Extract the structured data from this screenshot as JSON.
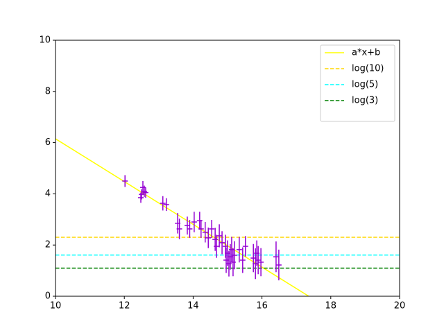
{
  "chart_data": {
    "type": "line",
    "xlim": [
      10,
      20
    ],
    "ylim": [
      0,
      10
    ],
    "xticks": [
      10,
      12,
      14,
      16,
      18,
      20
    ],
    "yticks": [
      0,
      2,
      4,
      6,
      8,
      10
    ],
    "legend": "upper right",
    "series": [
      {
        "name": "a*x+b",
        "color": "#ffff00",
        "type": "line",
        "x": [
          10,
          17.36
        ],
        "values": [
          6.15,
          0
        ]
      },
      {
        "name": "log(10)",
        "color": "#ffd700",
        "type": "line",
        "linestyle": "dashed",
        "x": [
          10,
          20
        ],
        "values": [
          2.303,
          2.303
        ]
      },
      {
        "name": "log(5)",
        "color": "#00ffff",
        "type": "line",
        "linestyle": "dashed",
        "x": [
          10,
          20
        ],
        "values": [
          1.609,
          1.609
        ]
      },
      {
        "name": "log(3)",
        "color": "#008000",
        "type": "line",
        "linestyle": "dashed",
        "x": [
          10,
          20
        ],
        "values": [
          1.099,
          1.099
        ]
      },
      {
        "color": "#9400d3",
        "type": "errorbar",
        "x": [
          12.02,
          12.5,
          12.54,
          12.58,
          12.48,
          12.62,
          13.12,
          13.22,
          13.55,
          13.6,
          13.83,
          13.9,
          14.03,
          14.19,
          14.23,
          14.35,
          14.44,
          14.54,
          14.64,
          14.68,
          14.76,
          14.84,
          14.94,
          14.96,
          15.0,
          15.04,
          15.08,
          15.12,
          15.16,
          15.2,
          15.34,
          15.44,
          15.52,
          15.75,
          15.81,
          15.85,
          15.89,
          15.97,
          16.41,
          16.49
        ],
        "values": [
          4.5,
          3.98,
          4.25,
          4.1,
          3.85,
          4.05,
          3.63,
          3.58,
          2.85,
          2.63,
          2.76,
          2.63,
          2.9,
          2.95,
          2.63,
          2.5,
          2.28,
          2.63,
          2.22,
          1.95,
          2.36,
          2.09,
          1.95,
          1.41,
          1.68,
          1.27,
          1.54,
          1.82,
          1.33,
          1.6,
          1.82,
          1.41,
          1.95,
          1.49,
          1.27,
          1.68,
          1.41,
          1.33,
          1.54,
          1.22
        ],
        "yerr": [
          0.23,
          0.2,
          0.25,
          0.22,
          0.2,
          0.2,
          0.28,
          0.25,
          0.4,
          0.4,
          0.35,
          0.35,
          0.4,
          0.35,
          0.35,
          0.4,
          0.4,
          0.35,
          0.45,
          0.45,
          0.45,
          0.45,
          0.45,
          0.5,
          0.5,
          0.5,
          0.5,
          0.5,
          0.55,
          0.55,
          0.5,
          0.5,
          0.4,
          0.55,
          0.6,
          0.5,
          0.55,
          0.55,
          0.6,
          0.6
        ],
        "xerr": [
          0.08,
          0.08,
          0.08,
          0.08,
          0.08,
          0.08,
          0.08,
          0.08,
          0.08,
          0.08,
          0.08,
          0.08,
          0.08,
          0.08,
          0.08,
          0.08,
          0.08,
          0.08,
          0.08,
          0.08,
          0.08,
          0.08,
          0.08,
          0.08,
          0.08,
          0.08,
          0.08,
          0.08,
          0.08,
          0.08,
          0.08,
          0.08,
          0.08,
          0.08,
          0.08,
          0.08,
          0.08,
          0.08,
          0.08,
          0.08
        ]
      }
    ]
  }
}
